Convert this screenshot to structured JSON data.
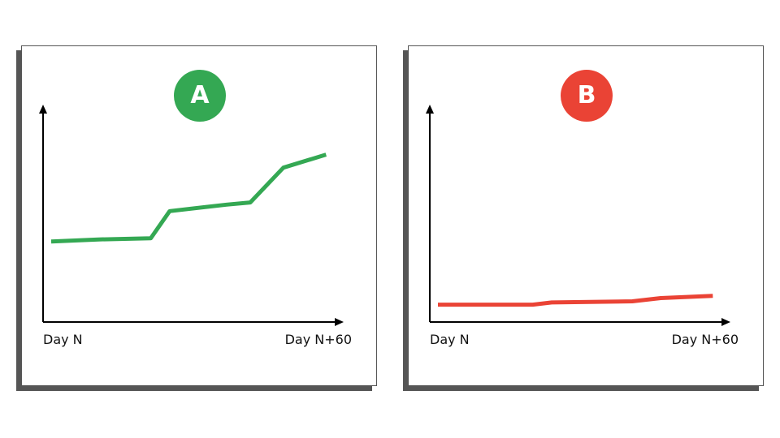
{
  "colors": {
    "a": "#34a853",
    "b": "#ea4335",
    "axis": "#000000"
  },
  "chart_data": [
    {
      "type": "line",
      "badge": "A",
      "xlabel_start": "Day N",
      "xlabel_end": "Day N+60",
      "ylim": [
        0,
        100
      ],
      "xlim": [
        0,
        60
      ],
      "series": [
        {
          "color": "#34a853",
          "x": [
            0,
            10,
            21,
            25,
            37,
            42,
            49,
            58
          ],
          "y": [
            37,
            38,
            38.5,
            51,
            54,
            55,
            71,
            77
          ]
        }
      ]
    },
    {
      "type": "line",
      "badge": "B",
      "xlabel_start": "Day N",
      "xlabel_end": "Day N+60",
      "ylim": [
        0,
        100
      ],
      "xlim": [
        0,
        60
      ],
      "series": [
        {
          "color": "#ea4335",
          "x": [
            0,
            20,
            24,
            41,
            47,
            58
          ],
          "y": [
            8,
            8,
            9,
            9.5,
            11,
            12
          ]
        }
      ]
    }
  ]
}
